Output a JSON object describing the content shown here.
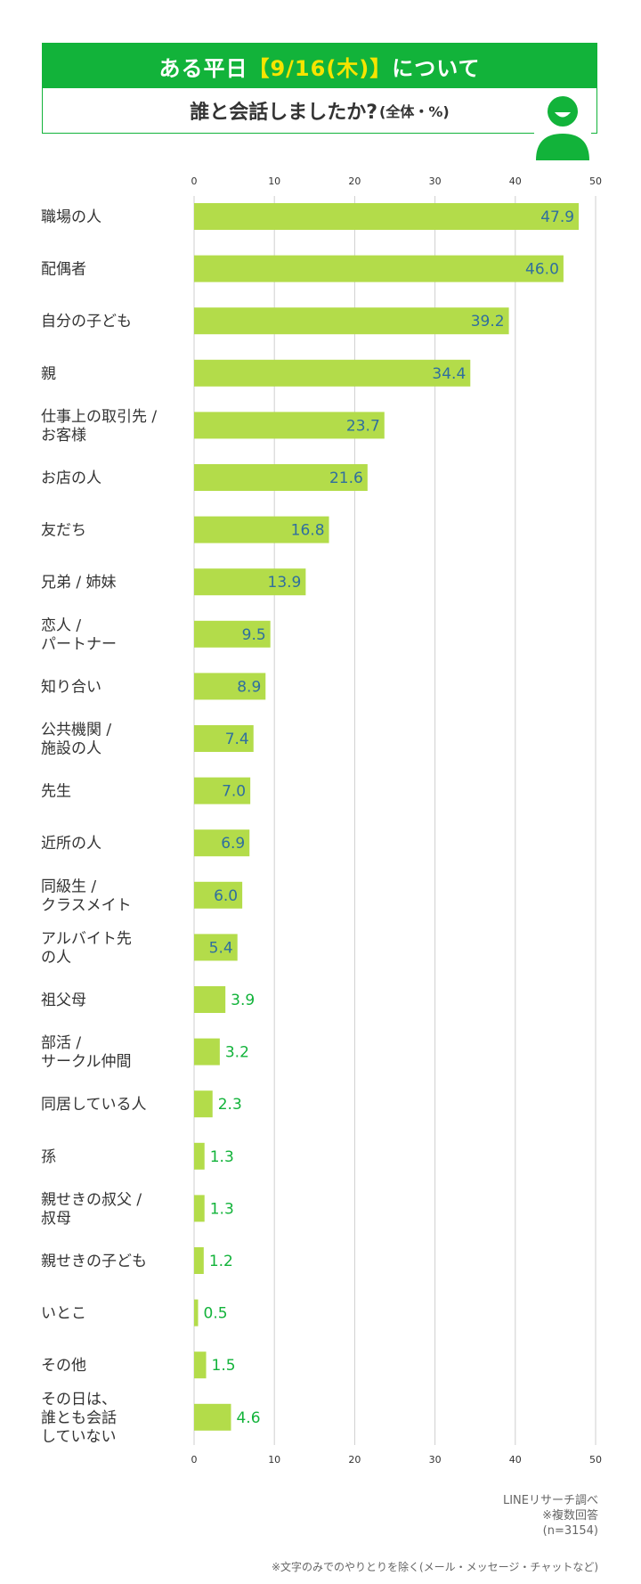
{
  "header": {
    "title_pre": "ある平日",
    "title_highlight": "【9/16(木)】",
    "title_post": "について",
    "question": "誰と会話しましたか?",
    "scope": "(全体・%)"
  },
  "icons": {
    "person": "person-avatar-icon"
  },
  "colors": {
    "brand": "#12b33a",
    "bar": "#b3dc4a",
    "label_inside": "#2f6f9e",
    "label_outside": "#12b33a",
    "highlight": "#f6e400"
  },
  "chart_data": {
    "type": "bar",
    "orientation": "horizontal",
    "xlim": [
      0,
      50
    ],
    "ticks": [
      "0",
      "10",
      "20",
      "30",
      "40",
      "50"
    ],
    "categories": [
      [
        "職場の人"
      ],
      [
        "配偶者"
      ],
      [
        "自分の子ども"
      ],
      [
        "親"
      ],
      [
        "仕事上の取引先 /",
        "お客様"
      ],
      [
        "お店の人"
      ],
      [
        "友だち"
      ],
      [
        "兄弟 / 姉妹"
      ],
      [
        "恋人 /",
        "パートナー"
      ],
      [
        "知り合い"
      ],
      [
        "公共機関 /",
        "施設の人"
      ],
      [
        "先生"
      ],
      [
        "近所の人"
      ],
      [
        "同級生 /",
        "クラスメイト"
      ],
      [
        "アルバイト先",
        "の人"
      ],
      [
        "祖父母"
      ],
      [
        "部活 /",
        "サークル仲間"
      ],
      [
        "同居している人"
      ],
      [
        "孫"
      ],
      [
        "親せきの叔父 /",
        "叔母"
      ],
      [
        "親せきの子ども"
      ],
      [
        "いとこ"
      ],
      [
        "その他"
      ],
      [
        "その日は、",
        "誰とも会話",
        "していない"
      ]
    ],
    "values": [
      47.9,
      46.0,
      39.2,
      34.4,
      23.7,
      21.6,
      16.8,
      13.9,
      9.5,
      8.9,
      7.4,
      7.0,
      6.9,
      6.0,
      5.4,
      3.9,
      3.2,
      2.3,
      1.3,
      1.3,
      1.2,
      0.5,
      1.5,
      4.6
    ],
    "value_labels": [
      "47.9",
      "46.0",
      "39.2",
      "34.4",
      "23.7",
      "21.6",
      "16.8",
      "13.9",
      "9.5",
      "8.9",
      "7.4",
      "7.0",
      "6.9",
      "6.0",
      "5.4",
      "3.9",
      "3.2",
      "2.3",
      "1.3",
      "1.3",
      "1.2",
      "0.5",
      "1.5",
      "4.6"
    ],
    "grid": true
  },
  "notes": {
    "source": "LINEリサーチ調べ",
    "multiple": "※複数回答",
    "n": "(n=3154)",
    "footnote": "※文字のみでのやりとりを除く(メール・メッセージ・チャットなど)"
  }
}
